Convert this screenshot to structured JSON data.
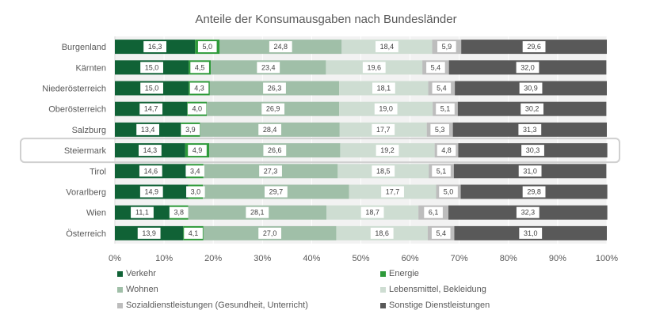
{
  "chart_data": {
    "type": "bar",
    "orientation": "horizontal",
    "stacked": "percent",
    "title": "Anteile der Konsumausgaben nach Bundesländer",
    "xlabel": "",
    "ylabel": "",
    "xlim": [
      0,
      100
    ],
    "x_ticks": [
      "0%",
      "10%",
      "20%",
      "30%",
      "40%",
      "50%",
      "60%",
      "70%",
      "80%",
      "90%",
      "100%"
    ],
    "grid": true,
    "legend_position": "bottom",
    "highlighted_category": "Steiermark",
    "categories": [
      "Burgenland",
      "Kärnten",
      "Niederösterreich",
      "Oberösterreich",
      "Salzburg",
      "Steiermark",
      "Tirol",
      "Vorarlberg",
      "Wien",
      "Österreich"
    ],
    "series": [
      {
        "name": "Verkehr",
        "color": "#106236",
        "labels": [
          "16,3",
          "15,0",
          "15,0",
          "14,7",
          "13,4",
          "14,3",
          "14,6",
          "14,9",
          "11,1",
          "13,9"
        ],
        "values": [
          16.3,
          15.0,
          15.0,
          14.7,
          13.4,
          14.3,
          14.6,
          14.9,
          11.1,
          13.9
        ]
      },
      {
        "name": "Energie",
        "color": "#2E9A3A",
        "labels": [
          "5,0",
          "4,5",
          "4,3",
          "4,0",
          "3,9",
          "4,9",
          "3,4",
          "3,0",
          "3,8",
          "4,1"
        ],
        "values": [
          5.0,
          4.5,
          4.3,
          4.0,
          3.9,
          4.9,
          3.4,
          3.0,
          3.8,
          4.1
        ]
      },
      {
        "name": "Wohnen",
        "color": "#A0BFA8",
        "labels": [
          "24,8",
          "23,4",
          "26,3",
          "26,9",
          "28,4",
          "26,6",
          "27,3",
          "29,7",
          "28,1",
          "27,0"
        ],
        "values": [
          24.8,
          23.4,
          26.3,
          26.9,
          28.4,
          26.6,
          27.3,
          29.7,
          28.1,
          27.0
        ]
      },
      {
        "name": "Lebensmittel, Bekleidung",
        "color": "#CEDDD2",
        "labels": [
          "18,4",
          "19,6",
          "18,1",
          "19,0",
          "17,7",
          "19,2",
          "18,5",
          "17,7",
          "18,7",
          "18,6"
        ],
        "values": [
          18.4,
          19.6,
          18.1,
          19.0,
          17.7,
          19.2,
          18.5,
          17.7,
          18.7,
          18.6
        ]
      },
      {
        "name": "Sozialdienstleistungen (Gesundheit, Unterricht)",
        "color": "#BDBDBD",
        "labels": [
          "5,9",
          "5,4",
          "5,4",
          "5,1",
          "5,3",
          "4,8",
          "5,1",
          "5,0",
          "6,1",
          "5,4"
        ],
        "values": [
          5.9,
          5.4,
          5.4,
          5.1,
          5.3,
          4.8,
          5.1,
          5.0,
          6.1,
          5.4
        ]
      },
      {
        "name": "Sonstige Dienstleistungen",
        "color": "#595959",
        "labels": [
          "29,6",
          "32,0",
          "30,9",
          "30,2",
          "31,3",
          "30,3",
          "31,0",
          "29,8",
          "32,3",
          "31,0"
        ],
        "values": [
          29.6,
          32.0,
          30.9,
          30.2,
          31.3,
          30.3,
          31.0,
          29.8,
          32.3,
          31.0
        ]
      }
    ]
  }
}
